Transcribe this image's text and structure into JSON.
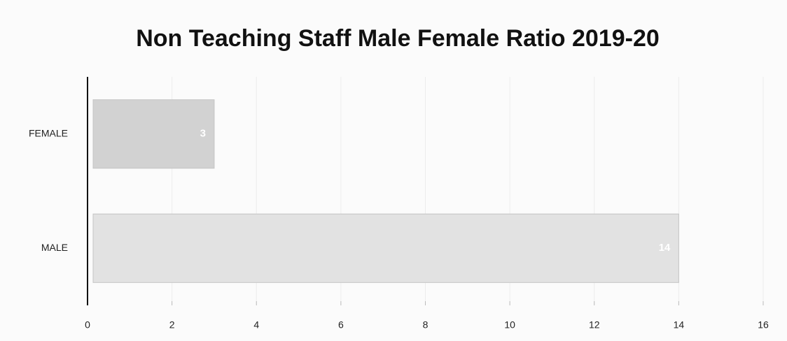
{
  "chart_data": {
    "type": "barh",
    "title": "Non Teaching Staff Male Female Ratio 2019-20",
    "categories": [
      "FEMALE",
      "MALE"
    ],
    "values": [
      3,
      14
    ],
    "colors": [
      "#d2d2d2",
      "#e2e2e2"
    ],
    "xlim": [
      0,
      16
    ],
    "xticks": [
      0,
      2,
      4,
      6,
      8,
      10,
      12,
      14,
      16
    ],
    "grid": true
  }
}
